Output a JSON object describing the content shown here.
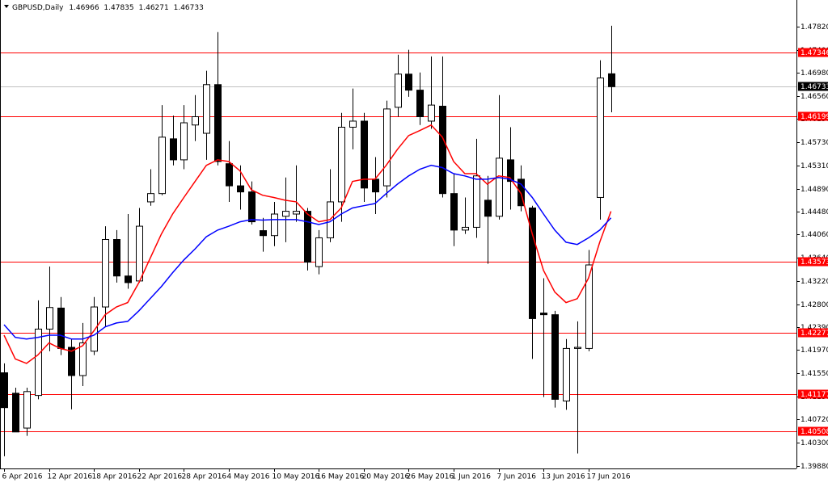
{
  "chart_data": {
    "type": "candlestick",
    "title": "GBPUSD,Daily",
    "categories": [
      "6 Apr 2016",
      null,
      null,
      null,
      "12 Apr 2016",
      null,
      null,
      null,
      "18 Apr 2016",
      null,
      null,
      null,
      "22 Apr 2016",
      null,
      null,
      null,
      "28 Apr 2016",
      null,
      null,
      null,
      "4 May 2016",
      null,
      null,
      null,
      "10 May 2016",
      null,
      null,
      null,
      "16 May 2016",
      null,
      null,
      null,
      "20 May 2016",
      null,
      null,
      null,
      "26 May 2016",
      null,
      null,
      null,
      "1 Jun 2016",
      null,
      null,
      null,
      "7 Jun 2016",
      null,
      null,
      null,
      "13 Jun 2016",
      null,
      null,
      null,
      "17 Jun 2016",
      null,
      null
    ],
    "open": [
      1.4156,
      1.4119,
      1.4056,
      1.4115,
      1.4235,
      1.4273,
      1.4202,
      1.4151,
      1.4195,
      1.4275,
      1.4397,
      1.4331,
      1.4322,
      1.4465,
      1.448,
      1.4579,
      1.4541,
      1.4604,
      1.4589,
      1.4677,
      1.4534,
      1.4494,
      1.4483,
      1.4413,
      1.4404,
      1.4439,
      1.4443,
      1.4448,
      1.4348,
      1.44,
      1.4465,
      1.46,
      1.4611,
      1.4506,
      1.4494,
      1.4636,
      1.4696,
      1.4667,
      1.4611,
      1.4638,
      1.448,
      1.4414,
      1.4419,
      1.4468,
      1.4439,
      1.4541,
      1.4506,
      1.4454,
      1.4264,
      1.4261,
      1.4105,
      1.42,
      1.42,
      1.4473,
      1.46966
    ],
    "high": [
      1.4173,
      1.4129,
      1.4129,
      1.4287,
      1.4348,
      1.4293,
      1.4217,
      1.4246,
      1.4293,
      1.4421,
      1.4414,
      1.4443,
      1.4454,
      1.4524,
      1.464,
      1.4621,
      1.464,
      1.4658,
      1.4702,
      1.4772,
      1.4575,
      1.4531,
      1.4502,
      1.4436,
      1.4465,
      1.4509,
      1.4531,
      1.4454,
      1.4414,
      1.4524,
      1.4626,
      1.467,
      1.4626,
      1.4546,
      1.4648,
      1.4731,
      1.474,
      1.4699,
      1.4728,
      1.4728,
      1.4516,
      1.4473,
      1.4579,
      1.4512,
      1.4658,
      1.46,
      1.4531,
      1.4458,
      1.4327,
      1.4268,
      1.4217,
      1.4249,
      1.4378,
      1.4721,
      1.47835
    ],
    "low": [
      1.4005,
      1.4049,
      1.4042,
      1.4108,
      1.4195,
      1.4188,
      1.409,
      1.4132,
      1.4188,
      1.4239,
      1.4319,
      1.4308,
      1.4319,
      1.4458,
      1.4477,
      1.4531,
      1.4524,
      1.4575,
      1.4541,
      1.4531,
      1.4465,
      1.4451,
      1.4424,
      1.4375,
      1.4385,
      1.4392,
      1.4429,
      1.4341,
      1.4334,
      1.4392,
      1.4429,
      1.456,
      1.4465,
      1.4443,
      1.4473,
      1.4619,
      1.4655,
      1.4604,
      1.4597,
      1.4473,
      1.4385,
      1.4407,
      1.44,
      1.4353,
      1.4433,
      1.4451,
      1.4448,
      1.4181,
      1.4112,
      1.4093,
      1.4089,
      1.401,
      1.4195,
      1.4433,
      1.46271
    ],
    "close": [
      1.4093,
      1.4049,
      1.4122,
      1.4235,
      1.4274,
      1.42,
      1.4151,
      1.421,
      1.4275,
      1.4397,
      1.4331,
      1.4319,
      1.4421,
      1.448,
      1.4582,
      1.4541,
      1.4608,
      1.4619,
      1.4677,
      1.4538,
      1.4494,
      1.4483,
      1.4429,
      1.4404,
      1.4443,
      1.4448,
      1.4448,
      1.4356,
      1.44,
      1.4465,
      1.46,
      1.4611,
      1.449,
      1.4483,
      1.4633,
      1.4696,
      1.4667,
      1.4619,
      1.464,
      1.448,
      1.4414,
      1.4419,
      1.4512,
      1.4439,
      1.4544,
      1.4502,
      1.4458,
      1.4254,
      1.4261,
      1.4108,
      1.42,
      1.4202,
      1.4351,
      1.4689,
      1.46733
    ],
    "up_color": "#ffffff",
    "down_color": "#000000",
    "overlays": [
      {
        "color": "#ff0000",
        "values": [
          1.4224,
          1.4181,
          1.4173,
          1.4188,
          1.421,
          1.42,
          1.4195,
          1.4205,
          1.4232,
          1.4261,
          1.4275,
          1.4283,
          1.4319,
          1.4363,
          1.4407,
          1.4443,
          1.4473,
          1.4502,
          1.4531,
          1.4541,
          1.4538,
          1.4521,
          1.4487,
          1.4477,
          1.4473,
          1.4468,
          1.4465,
          1.4443,
          1.4429,
          1.4433,
          1.4454,
          1.4502,
          1.4506,
          1.4506,
          1.4531,
          1.456,
          1.4585,
          1.4594,
          1.4604,
          1.4582,
          1.4538,
          1.4516,
          1.4516,
          1.4497,
          1.4512,
          1.4509,
          1.448,
          1.4407,
          1.4341,
          1.4302,
          1.4283,
          1.429,
          1.4327,
          1.4392,
          1.4448
        ]
      },
      {
        "color": "#0000ff",
        "values": [
          1.4243,
          1.422,
          1.4217,
          1.422,
          1.4224,
          1.4224,
          1.4217,
          1.4217,
          1.4224,
          1.4239,
          1.4246,
          1.4249,
          1.4268,
          1.429,
          1.4312,
          1.4337,
          1.436,
          1.438,
          1.4402,
          1.4414,
          1.4421,
          1.4429,
          1.4433,
          1.4432,
          1.4433,
          1.4433,
          1.4433,
          1.4429,
          1.4424,
          1.4429,
          1.4443,
          1.4454,
          1.4458,
          1.4462,
          1.448,
          1.4497,
          1.4512,
          1.4524,
          1.4531,
          1.4527,
          1.4516,
          1.4512,
          1.4506,
          1.4506,
          1.4509,
          1.4506,
          1.4497,
          1.4473,
          1.4443,
          1.4414,
          1.4392,
          1.4388,
          1.44,
          1.4414,
          1.4436
        ]
      }
    ],
    "levels": [
      {
        "value": 1.47346,
        "color": "#ff0000"
      },
      {
        "value": 1.46199,
        "color": "#ff0000"
      },
      {
        "value": 1.43573,
        "color": "#ff0000"
      },
      {
        "value": 1.42277,
        "color": "#ff0000"
      },
      {
        "value": 1.41177,
        "color": "#ff0000"
      },
      {
        "value": 1.40508,
        "color": "#ff0000"
      }
    ],
    "price_line_color": "#c0c0c0",
    "ylim": [
      1.3983,
      1.483
    ],
    "yticks": [
      {
        "value": 1.4782,
        "label": "1.47820"
      },
      {
        "value": 1.474,
        "label": "1.47400"
      },
      {
        "value": 1.4698,
        "label": "1.46980"
      },
      {
        "value": 1.4656,
        "label": "1.46560"
      },
      {
        "value": 1.4615,
        "label": "1.46150"
      },
      {
        "value": 1.4573,
        "label": "1.45730"
      },
      {
        "value": 1.4531,
        "label": "1.45310"
      },
      {
        "value": 1.4489,
        "label": "1.44890"
      },
      {
        "value": 1.4448,
        "label": "1.44480"
      },
      {
        "value": 1.4406,
        "label": "1.44060"
      },
      {
        "value": 1.4364,
        "label": "1.43640"
      },
      {
        "value": 1.4322,
        "label": "1.43220"
      },
      {
        "value": 1.428,
        "label": "1.42800"
      },
      {
        "value": 1.4239,
        "label": "1.42390"
      },
      {
        "value": 1.4197,
        "label": "1.41970"
      },
      {
        "value": 1.4155,
        "label": "1.41550"
      },
      {
        "value": 1.4113,
        "label": "1.41130"
      },
      {
        "value": 1.4072,
        "label": "1.40720"
      },
      {
        "value": 1.403,
        "label": "1.40300"
      },
      {
        "value": 1.3988,
        "label": "1.39880"
      }
    ],
    "grid": false
  }
}
